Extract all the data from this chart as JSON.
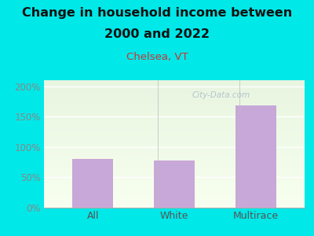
{
  "title_line1": "Change in household income between",
  "title_line2": "2000 and 2022",
  "subtitle": "Chelsea, VT",
  "categories": [
    "All",
    "White",
    "Multirace"
  ],
  "values": [
    80,
    78,
    168
  ],
  "bar_color": "#c8a8d8",
  "background_outer": "#00e8e8",
  "background_inner_topleft": "#e8f5e0",
  "background_inner_bottomright": "#f8fff0",
  "title_fontsize": 11.5,
  "subtitle_fontsize": 9.5,
  "subtitle_color": "#cc3333",
  "tick_label_color": "#888888",
  "xtick_label_color": "#555555",
  "ylim": [
    0,
    210
  ],
  "yticks": [
    0,
    50,
    100,
    150,
    200
  ],
  "ytick_labels": [
    "0%",
    "50%",
    "100%",
    "150%",
    "200%"
  ],
  "watermark": "City-Data.com",
  "watermark_color": "#aabbcc"
}
